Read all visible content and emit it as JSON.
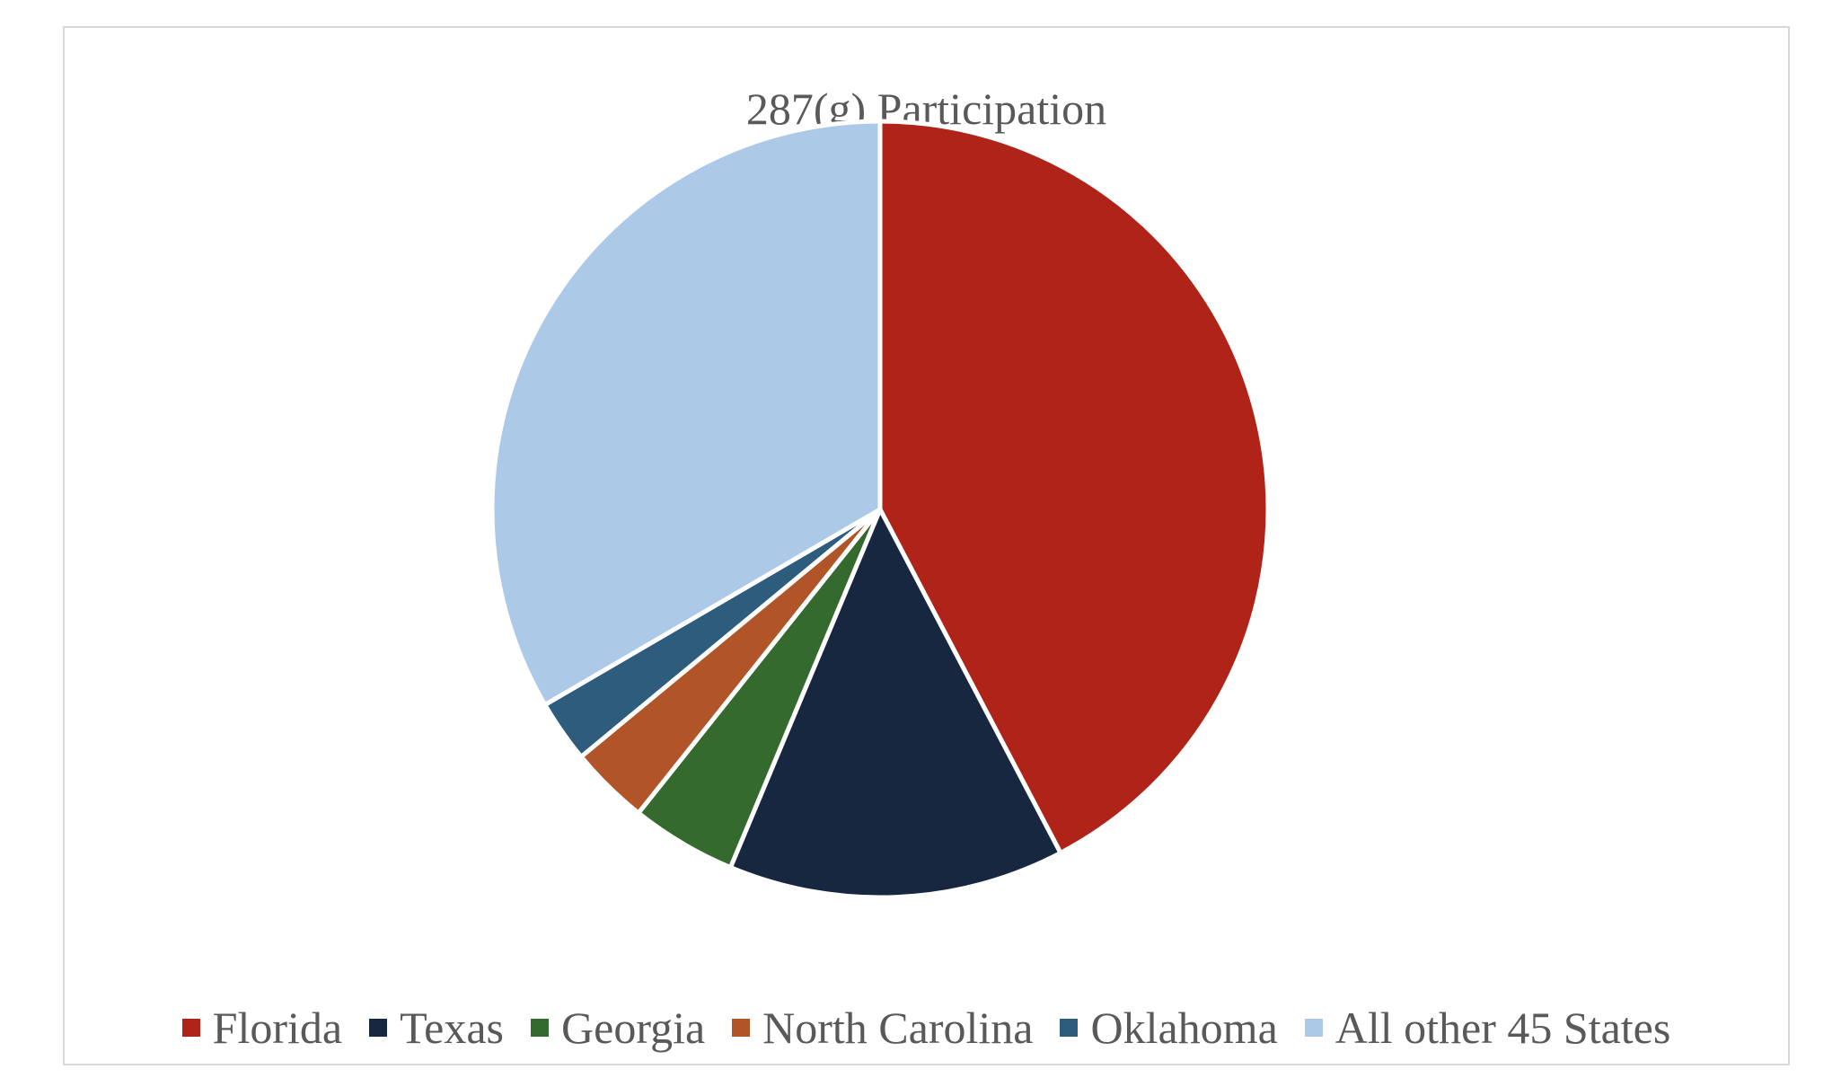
{
  "chart_data": {
    "type": "pie",
    "title": "287(g) Participation",
    "categories": [
      "Florida",
      "Texas",
      "Georgia",
      "North Carolina",
      "Oklahoma",
      "All other 45 States"
    ],
    "values": [
      42.3,
      14.0,
      4.4,
      3.3,
      2.6,
      33.4
    ],
    "colors": [
      "#B02318",
      "#172740",
      "#356A2E",
      "#B15528",
      "#2D5C7C",
      "#ADC9E8"
    ],
    "start_angle_deg": 0,
    "direction": "clockwise",
    "legend_position": "bottom"
  }
}
